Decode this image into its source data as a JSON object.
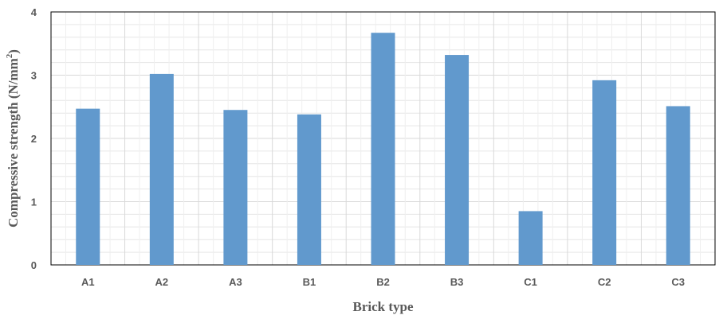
{
  "chart_data": {
    "type": "bar",
    "categories": [
      "A1",
      "A2",
      "A3",
      "B1",
      "B2",
      "B3",
      "C1",
      "C2",
      "C3"
    ],
    "values": [
      2.47,
      3.02,
      2.45,
      2.38,
      3.67,
      3.32,
      0.85,
      2.92,
      2.51
    ],
    "xlabel": "Brick type",
    "ylabel": "Compressive strength (N/mm",
    "ylabel_superscript": "2",
    "ylabel_suffix": ")",
    "ylim": [
      0,
      4
    ],
    "yticks": [
      "0",
      "1",
      "2",
      "3",
      "4"
    ],
    "grid": true,
    "bar_color": "#6199cd",
    "grid_color": "#e6e6e6"
  }
}
